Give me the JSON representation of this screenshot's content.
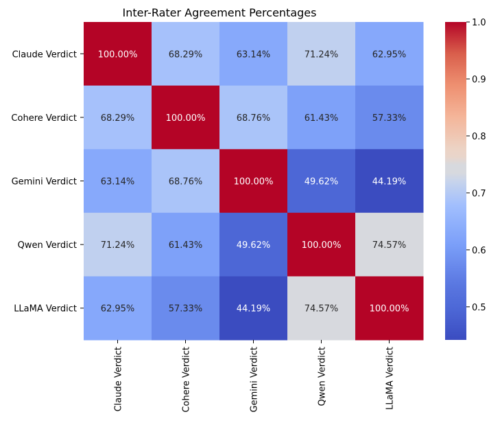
{
  "chart_data": {
    "type": "heatmap",
    "title": "Inter-Rater Agreement Percentages",
    "x_labels": [
      "Claude Verdict",
      "Cohere Verdict",
      "Gemini Verdict",
      "Qwen Verdict",
      "LLaMA Verdict"
    ],
    "y_labels": [
      "Claude Verdict",
      "Cohere Verdict",
      "Gemini Verdict",
      "Qwen Verdict",
      "LLaMA Verdict"
    ],
    "values": [
      [
        1.0,
        0.6829,
        0.6314,
        0.7124,
        0.6295
      ],
      [
        0.6829,
        1.0,
        0.6876,
        0.6143,
        0.5733
      ],
      [
        0.6314,
        0.6876,
        1.0,
        0.4962,
        0.4419
      ],
      [
        0.7124,
        0.6143,
        0.4962,
        1.0,
        0.7457
      ],
      [
        0.6295,
        0.5733,
        0.4419,
        0.7457,
        1.0
      ]
    ],
    "annotations": [
      [
        "100.00%",
        "68.29%",
        "63.14%",
        "71.24%",
        "62.95%"
      ],
      [
        "68.29%",
        "100.00%",
        "68.76%",
        "61.43%",
        "57.33%"
      ],
      [
        "63.14%",
        "68.76%",
        "100.00%",
        "49.62%",
        "44.19%"
      ],
      [
        "71.24%",
        "61.43%",
        "49.62%",
        "100.00%",
        "74.57%"
      ],
      [
        "62.95%",
        "57.33%",
        "44.19%",
        "74.57%",
        "100.00%"
      ]
    ],
    "colormap": "coolwarm",
    "vmin": 0.4419,
    "vmax": 1.0,
    "colorbar_ticks": [
      0.5,
      0.6,
      0.7,
      0.8,
      0.9,
      1.0
    ],
    "colorbar_tick_labels": [
      "0.5",
      "0.6",
      "0.7",
      "0.8",
      "0.9",
      "1.0"
    ],
    "grid": false
  }
}
